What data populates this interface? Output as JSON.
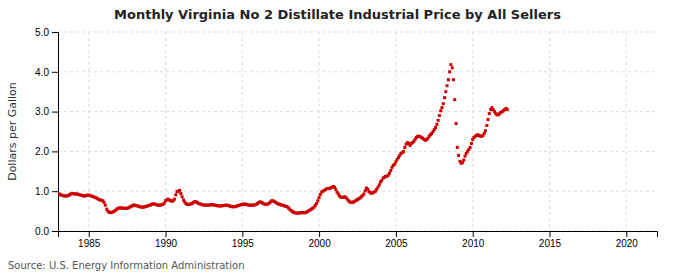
{
  "chart_data": {
    "type": "scatter",
    "title": "Monthly Virginia No 2 Distillate Industrial Price by All Sellers",
    "ylabel": "Dollars per Gallon",
    "source": "Source: U.S. Energy Information Administration",
    "color": "#cc0000",
    "marker": "square",
    "grid": true,
    "xlim": [
      1983,
      2022
    ],
    "ylim": [
      0.0,
      5.0
    ],
    "xticks": [
      1985,
      1990,
      1995,
      2000,
      2005,
      2010,
      2015,
      2020
    ],
    "yticks": [
      {
        "value": 0.0,
        "label": "0.0"
      },
      {
        "value": 1.0,
        "label": "1.0"
      },
      {
        "value": 2.0,
        "label": "2.0"
      },
      {
        "value": 3.0,
        "label": "3.0"
      },
      {
        "value": 4.0,
        "label": "4.0"
      },
      {
        "value": 5.0,
        "label": "5.0"
      }
    ],
    "x": [
      1983.0,
      1983.08,
      1983.17,
      1983.25,
      1983.33,
      1983.42,
      1983.5,
      1983.58,
      1983.67,
      1983.75,
      1983.83,
      1983.92,
      1984.0,
      1984.08,
      1984.17,
      1984.25,
      1984.33,
      1984.42,
      1984.5,
      1984.58,
      1984.67,
      1984.75,
      1984.83,
      1984.92,
      1985.0,
      1985.08,
      1985.17,
      1985.25,
      1985.33,
      1985.42,
      1985.5,
      1985.58,
      1985.67,
      1985.75,
      1985.83,
      1985.92,
      1986.0,
      1986.08,
      1986.17,
      1986.25,
      1986.33,
      1986.42,
      1986.5,
      1986.58,
      1986.67,
      1986.75,
      1986.83,
      1986.92,
      1987.0,
      1987.08,
      1987.17,
      1987.25,
      1987.33,
      1987.42,
      1987.5,
      1987.58,
      1987.67,
      1987.75,
      1987.83,
      1987.92,
      1988.0,
      1988.08,
      1988.17,
      1988.25,
      1988.33,
      1988.42,
      1988.5,
      1988.58,
      1988.67,
      1988.75,
      1988.83,
      1988.92,
      1989.0,
      1989.08,
      1989.17,
      1989.25,
      1989.33,
      1989.42,
      1989.5,
      1989.58,
      1989.67,
      1989.75,
      1989.83,
      1989.92,
      1990.0,
      1990.08,
      1990.17,
      1990.25,
      1990.33,
      1990.42,
      1990.5,
      1990.58,
      1990.67,
      1990.75,
      1990.83,
      1990.92,
      1991.0,
      1991.08,
      1991.17,
      1991.25,
      1991.33,
      1991.42,
      1991.5,
      1991.58,
      1991.67,
      1991.75,
      1991.83,
      1991.92,
      1992.0,
      1992.08,
      1992.17,
      1992.25,
      1992.33,
      1992.42,
      1992.5,
      1992.58,
      1992.67,
      1992.75,
      1992.83,
      1992.92,
      1993.0,
      1993.08,
      1993.17,
      1993.25,
      1993.33,
      1993.42,
      1993.5,
      1993.58,
      1993.67,
      1993.75,
      1993.83,
      1993.92,
      1994.0,
      1994.08,
      1994.17,
      1994.25,
      1994.33,
      1994.42,
      1994.5,
      1994.58,
      1994.67,
      1994.75,
      1994.83,
      1994.92,
      1995.0,
      1995.08,
      1995.17,
      1995.25,
      1995.33,
      1995.42,
      1995.5,
      1995.58,
      1995.67,
      1995.75,
      1995.83,
      1995.92,
      1996.0,
      1996.08,
      1996.17,
      1996.25,
      1996.33,
      1996.42,
      1996.5,
      1996.58,
      1996.67,
      1996.75,
      1996.83,
      1996.92,
      1997.0,
      1997.08,
      1997.17,
      1997.25,
      1997.33,
      1997.42,
      1997.5,
      1997.58,
      1997.67,
      1997.75,
      1997.83,
      1997.92,
      1998.0,
      1998.08,
      1998.17,
      1998.25,
      1998.33,
      1998.42,
      1998.5,
      1998.58,
      1998.67,
      1998.75,
      1998.83,
      1998.92,
      1999.0,
      1999.08,
      1999.17,
      1999.25,
      1999.33,
      1999.42,
      1999.5,
      1999.58,
      1999.67,
      1999.75,
      1999.83,
      1999.92,
      2000.0,
      2000.08,
      2000.17,
      2000.25,
      2000.33,
      2000.42,
      2000.5,
      2000.58,
      2000.67,
      2000.75,
      2000.83,
      2000.92,
      2001.0,
      2001.08,
      2001.17,
      2001.25,
      2001.33,
      2001.42,
      2001.5,
      2001.58,
      2001.67,
      2001.75,
      2001.83,
      2001.92,
      2002.0,
      2002.08,
      2002.17,
      2002.25,
      2002.33,
      2002.42,
      2002.5,
      2002.58,
      2002.67,
      2002.75,
      2002.83,
      2002.92,
      2003.0,
      2003.08,
      2003.17,
      2003.25,
      2003.33,
      2003.42,
      2003.5,
      2003.58,
      2003.67,
      2003.75,
      2003.83,
      2003.92,
      2004.0,
      2004.08,
      2004.17,
      2004.25,
      2004.33,
      2004.42,
      2004.5,
      2004.58,
      2004.67,
      2004.75,
      2004.83,
      2004.92,
      2005.0,
      2005.08,
      2005.17,
      2005.25,
      2005.33,
      2005.42,
      2005.5,
      2005.58,
      2005.67,
      2005.75,
      2005.83,
      2005.92,
      2006.0,
      2006.08,
      2006.17,
      2006.25,
      2006.33,
      2006.42,
      2006.5,
      2006.58,
      2006.67,
      2006.75,
      2006.83,
      2006.92,
      2007.0,
      2007.08,
      2007.17,
      2007.25,
      2007.33,
      2007.42,
      2007.5,
      2007.58,
      2007.67,
      2007.75,
      2007.83,
      2007.92,
      2008.0,
      2008.08,
      2008.17,
      2008.25,
      2008.33,
      2008.42,
      2008.5,
      2008.58,
      2008.67,
      2008.75,
      2008.83,
      2008.92,
      2009.0,
      2009.08,
      2009.17,
      2009.25,
      2009.33,
      2009.42,
      2009.5,
      2009.58,
      2009.67,
      2009.75,
      2009.83,
      2009.92,
      2010.0,
      2010.08,
      2010.17,
      2010.25,
      2010.33,
      2010.42,
      2010.5,
      2010.58,
      2010.67,
      2010.75,
      2010.83,
      2010.92,
      2011.0,
      2011.08,
      2011.17,
      2011.25,
      2011.33,
      2011.42,
      2011.5,
      2011.58,
      2011.67,
      2011.75,
      2011.83,
      2011.92,
      2012.0,
      2012.08,
      2012.17,
      2012.25
    ],
    "values": [
      0.94,
      0.93,
      0.91,
      0.9,
      0.89,
      0.88,
      0.88,
      0.88,
      0.89,
      0.91,
      0.93,
      0.94,
      0.94,
      0.93,
      0.93,
      0.93,
      0.92,
      0.91,
      0.9,
      0.89,
      0.88,
      0.88,
      0.89,
      0.9,
      0.9,
      0.89,
      0.88,
      0.87,
      0.86,
      0.84,
      0.83,
      0.81,
      0.79,
      0.78,
      0.77,
      0.76,
      0.72,
      0.65,
      0.55,
      0.5,
      0.47,
      0.46,
      0.47,
      0.48,
      0.5,
      0.52,
      0.55,
      0.57,
      0.58,
      0.58,
      0.58,
      0.57,
      0.57,
      0.57,
      0.57,
      0.58,
      0.6,
      0.62,
      0.63,
      0.65,
      0.65,
      0.64,
      0.63,
      0.62,
      0.61,
      0.6,
      0.6,
      0.6,
      0.61,
      0.62,
      0.63,
      0.64,
      0.65,
      0.67,
      0.68,
      0.68,
      0.67,
      0.66,
      0.65,
      0.65,
      0.65,
      0.66,
      0.67,
      0.7,
      0.76,
      0.78,
      0.8,
      0.78,
      0.76,
      0.75,
      0.76,
      0.8,
      0.91,
      0.99,
      1.0,
      1.02,
      0.94,
      0.86,
      0.78,
      0.73,
      0.69,
      0.67,
      0.67,
      0.67,
      0.68,
      0.7,
      0.72,
      0.74,
      0.73,
      0.71,
      0.69,
      0.68,
      0.67,
      0.66,
      0.65,
      0.65,
      0.65,
      0.65,
      0.65,
      0.66,
      0.66,
      0.66,
      0.65,
      0.65,
      0.64,
      0.63,
      0.63,
      0.63,
      0.63,
      0.64,
      0.64,
      0.65,
      0.65,
      0.64,
      0.63,
      0.62,
      0.61,
      0.61,
      0.61,
      0.62,
      0.63,
      0.64,
      0.65,
      0.66,
      0.67,
      0.67,
      0.68,
      0.67,
      0.66,
      0.65,
      0.65,
      0.65,
      0.65,
      0.65,
      0.66,
      0.67,
      0.69,
      0.72,
      0.73,
      0.72,
      0.7,
      0.68,
      0.67,
      0.67,
      0.68,
      0.7,
      0.73,
      0.76,
      0.76,
      0.74,
      0.72,
      0.7,
      0.68,
      0.67,
      0.66,
      0.65,
      0.64,
      0.63,
      0.62,
      0.61,
      0.58,
      0.55,
      0.52,
      0.49,
      0.47,
      0.46,
      0.45,
      0.45,
      0.45,
      0.46,
      0.46,
      0.46,
      0.46,
      0.46,
      0.47,
      0.49,
      0.51,
      0.53,
      0.55,
      0.57,
      0.6,
      0.64,
      0.69,
      0.76,
      0.84,
      0.92,
      0.98,
      1.0,
      1.02,
      1.04,
      1.06,
      1.07,
      1.07,
      1.08,
      1.1,
      1.12,
      1.1,
      1.05,
      0.98,
      0.93,
      0.88,
      0.85,
      0.84,
      0.85,
      0.86,
      0.84,
      0.8,
      0.76,
      0.73,
      0.72,
      0.72,
      0.73,
      0.75,
      0.77,
      0.79,
      0.81,
      0.83,
      0.86,
      0.89,
      0.93,
      1.01,
      1.08,
      1.05,
      0.99,
      0.96,
      0.95,
      0.96,
      0.98,
      1.0,
      1.05,
      1.1,
      1.16,
      1.23,
      1.27,
      1.33,
      1.35,
      1.37,
      1.38,
      1.4,
      1.45,
      1.52,
      1.6,
      1.65,
      1.68,
      1.74,
      1.8,
      1.85,
      1.9,
      1.95,
      1.97,
      2.0,
      2.1,
      2.18,
      2.22,
      2.2,
      2.15,
      2.2,
      2.22,
      2.25,
      2.3,
      2.35,
      2.38,
      2.38,
      2.37,
      2.35,
      2.33,
      2.3,
      2.28,
      2.3,
      2.33,
      2.38,
      2.42,
      2.45,
      2.5,
      2.55,
      2.6,
      2.68,
      2.78,
      2.9,
      3.02,
      3.1,
      3.2,
      3.35,
      3.5,
      3.65,
      3.8,
      4.0,
      4.18,
      4.1,
      3.8,
      3.3,
      2.7,
      2.1,
      1.9,
      1.75,
      1.7,
      1.72,
      1.78,
      1.88,
      1.95,
      2.0,
      2.05,
      2.1,
      2.2,
      2.3,
      2.35,
      2.38,
      2.4,
      2.42,
      2.4,
      2.38,
      2.38,
      2.4,
      2.45,
      2.52,
      2.65,
      2.8,
      2.95,
      3.05,
      3.1,
      3.05,
      3.0,
      2.95,
      2.92,
      2.92,
      2.95,
      2.98,
      3.0,
      3.02,
      3.05,
      3.08,
      3.05
    ]
  }
}
